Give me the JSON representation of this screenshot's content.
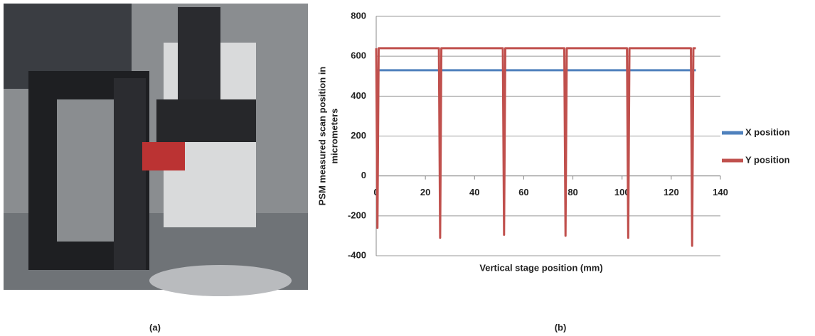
{
  "chart_data": {
    "type": "line",
    "xlabel": "Vertical stage position (mm)",
    "ylabel": [
      "PSM measured scan position in",
      "micrometers"
    ],
    "xlim": [
      0,
      140
    ],
    "xticks": [
      0,
      20,
      40,
      60,
      80,
      100,
      120,
      140
    ],
    "ylim": [
      -400,
      800
    ],
    "yticks": [
      -400,
      -200,
      0,
      200,
      400,
      600,
      800
    ],
    "grid": true,
    "legend": "right",
    "series": [
      {
        "name": "X position",
        "color": "#4f81bd",
        "x": [
          0,
          130
        ],
        "values": [
          530,
          530
        ]
      },
      {
        "name": "Y position",
        "color": "#c0504d",
        "x": [
          0,
          0.5,
          1,
          25.5,
          26,
          26.5,
          51.5,
          52,
          52.5,
          76.5,
          77,
          77.5,
          102,
          102.5,
          103,
          128,
          128.5,
          129,
          130
        ],
        "values": [
          640,
          -260,
          640,
          640,
          -310,
          640,
          640,
          -295,
          640,
          640,
          -300,
          640,
          640,
          -310,
          640,
          640,
          -350,
          640,
          640
        ]
      }
    ]
  },
  "captions": [
    "(a)",
    "(b)"
  ]
}
